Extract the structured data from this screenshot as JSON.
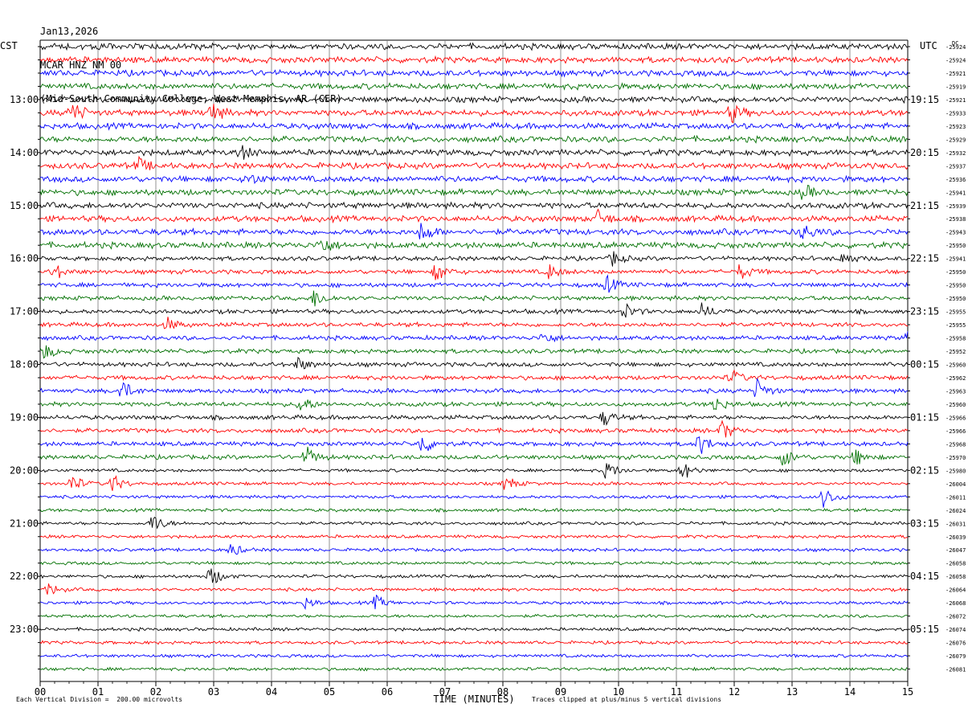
{
  "header": {
    "date": "Jan13,2026",
    "station": "MCAR HNZ NM 00",
    "location": "(Mid-South Community College, West Memphis, AR (CER)"
  },
  "footer": {
    "division_note": "Each Vertical Division =  200.00 microvolts",
    "clip_note": "Traces clipped at plus/minus 5 vertical divisions"
  },
  "chart_data": {
    "type": "line",
    "title": "",
    "xlabel": "TIME (MINUTES)",
    "ylabel_left": "CST",
    "ylabel_right": "UTC",
    "dc_label": "DC",
    "xlim": [
      0,
      15
    ],
    "x_ticks": [
      "00",
      "01",
      "02",
      "03",
      "04",
      "05",
      "06",
      "07",
      "08",
      "09",
      "10",
      "11",
      "12",
      "13",
      "14",
      "15"
    ],
    "grid_vertical": true,
    "trace_colors": [
      "#000000",
      "#ff0000",
      "#0000ff",
      "#007000"
    ],
    "rows": 48,
    "left_time_labels": [
      {
        "row": 4,
        "label": "13:00"
      },
      {
        "row": 8,
        "label": "14:00"
      },
      {
        "row": 12,
        "label": "15:00"
      },
      {
        "row": 16,
        "label": "16:00"
      },
      {
        "row": 20,
        "label": "17:00"
      },
      {
        "row": 24,
        "label": "18:00"
      },
      {
        "row": 28,
        "label": "19:00"
      },
      {
        "row": 32,
        "label": "20:00"
      },
      {
        "row": 36,
        "label": "21:00"
      },
      {
        "row": 40,
        "label": "22:00"
      },
      {
        "row": 44,
        "label": "23:00"
      }
    ],
    "right_time_labels": [
      {
        "row": 4,
        "label": "19:15"
      },
      {
        "row": 8,
        "label": "20:15"
      },
      {
        "row": 12,
        "label": "21:15"
      },
      {
        "row": 16,
        "label": "22:15"
      },
      {
        "row": 20,
        "label": "23:15"
      },
      {
        "row": 24,
        "label": "00:15"
      },
      {
        "row": 28,
        "label": "01:15"
      },
      {
        "row": 32,
        "label": "02:15"
      },
      {
        "row": 36,
        "label": "03:15"
      },
      {
        "row": 40,
        "label": "04:15"
      },
      {
        "row": 44,
        "label": "05:15"
      }
    ],
    "dc_offsets": [
      "-25924",
      "-25924",
      "-25921",
      "-25919",
      "-25921",
      "-25933",
      "-25923",
      "-25929",
      "-25932",
      "-25937",
      "-25936",
      "-25941",
      "-25939",
      "-25938",
      "-25943",
      "-25950",
      "-25941",
      "-25950",
      "-25950",
      "-25950",
      "-25955",
      "-25955",
      "-25958",
      "-25952",
      "-25960",
      "-25962",
      "-25963",
      "-25960",
      "-25966",
      "-25966",
      "-25968",
      "-25970",
      "-25980",
      "-26004",
      "-26011",
      "-26024",
      "-26031",
      "-26039",
      "-26047",
      "-26058",
      "-26058",
      "-26064",
      "-26068",
      "-26072",
      "-26074",
      "-26076",
      "-26079",
      "-26081"
    ],
    "events": [
      {
        "row": 5,
        "minute": 0.55,
        "amp": 14
      },
      {
        "row": 5,
        "minute": 2.95,
        "amp": 14
      },
      {
        "row": 5,
        "minute": 11.95,
        "amp": 12
      },
      {
        "row": 8,
        "minute": 3.45,
        "amp": 10
      },
      {
        "row": 9,
        "minute": 1.7,
        "amp": 9
      },
      {
        "row": 10,
        "minute": 3.6,
        "amp": 8
      },
      {
        "row": 11,
        "minute": 13.2,
        "amp": 9
      },
      {
        "row": 13,
        "minute": 9.65,
        "amp": 10
      },
      {
        "row": 14,
        "minute": 6.6,
        "amp": 14
      },
      {
        "row": 14,
        "minute": 13.2,
        "amp": 10
      },
      {
        "row": 15,
        "minute": 4.85,
        "amp": 12
      },
      {
        "row": 16,
        "minute": 9.9,
        "amp": 9
      },
      {
        "row": 16,
        "minute": 13.9,
        "amp": 9
      },
      {
        "row": 17,
        "minute": 0.25,
        "amp": 10
      },
      {
        "row": 17,
        "minute": 6.85,
        "amp": 12
      },
      {
        "row": 17,
        "minute": 8.8,
        "amp": 9
      },
      {
        "row": 17,
        "minute": 12.1,
        "amp": 10
      },
      {
        "row": 18,
        "minute": 9.8,
        "amp": 11
      },
      {
        "row": 19,
        "minute": 4.75,
        "amp": 11
      },
      {
        "row": 20,
        "minute": 10.1,
        "amp": 10
      },
      {
        "row": 20,
        "minute": 11.45,
        "amp": 10
      },
      {
        "row": 21,
        "minute": 2.2,
        "amp": 8
      },
      {
        "row": 22,
        "minute": 8.7,
        "amp": 8
      },
      {
        "row": 22,
        "minute": 15.0,
        "amp": 9
      },
      {
        "row": 23,
        "minute": 0.05,
        "amp": 12
      },
      {
        "row": 24,
        "minute": 4.45,
        "amp": 9
      },
      {
        "row": 25,
        "minute": 11.95,
        "amp": 10
      },
      {
        "row": 26,
        "minute": 1.4,
        "amp": 14
      },
      {
        "row": 26,
        "minute": 12.4,
        "amp": 14
      },
      {
        "row": 27,
        "minute": 4.5,
        "amp": 12
      },
      {
        "row": 27,
        "minute": 11.65,
        "amp": 10
      },
      {
        "row": 28,
        "minute": 9.75,
        "amp": 10
      },
      {
        "row": 29,
        "minute": 11.8,
        "amp": 13
      },
      {
        "row": 30,
        "minute": 6.6,
        "amp": 14
      },
      {
        "row": 30,
        "minute": 11.4,
        "amp": 14
      },
      {
        "row": 31,
        "minute": 4.6,
        "amp": 13
      },
      {
        "row": 31,
        "minute": 12.85,
        "amp": 12
      },
      {
        "row": 31,
        "minute": 14.1,
        "amp": 11
      },
      {
        "row": 32,
        "minute": 9.8,
        "amp": 12
      },
      {
        "row": 32,
        "minute": 11.1,
        "amp": 13
      },
      {
        "row": 33,
        "minute": 0.55,
        "amp": 12
      },
      {
        "row": 33,
        "minute": 1.25,
        "amp": 12
      },
      {
        "row": 33,
        "minute": 8.05,
        "amp": 10
      },
      {
        "row": 34,
        "minute": 13.55,
        "amp": 14
      },
      {
        "row": 36,
        "minute": 1.95,
        "amp": 13
      },
      {
        "row": 38,
        "minute": 3.3,
        "amp": 9
      },
      {
        "row": 40,
        "minute": 2.95,
        "amp": 14
      },
      {
        "row": 41,
        "minute": 0.15,
        "amp": 8
      },
      {
        "row": 42,
        "minute": 5.8,
        "amp": 9
      },
      {
        "row": 42,
        "minute": 4.6,
        "amp": 7
      }
    ]
  }
}
